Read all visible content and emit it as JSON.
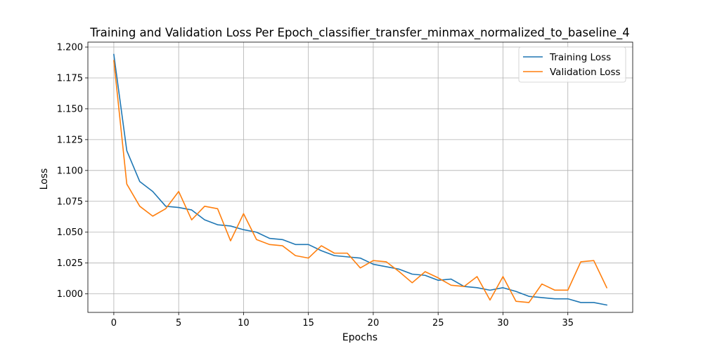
{
  "chart_data": {
    "type": "line",
    "title": "Training and Validation Loss Per Epoch_classifier_transfer_minmax_normalized_to_baseline_4",
    "xlabel": "Epochs",
    "ylabel": "Loss",
    "xlim": [
      -2,
      40
    ],
    "ylim": [
      0.985,
      1.204
    ],
    "xticks": [
      0,
      5,
      10,
      15,
      20,
      25,
      30,
      35
    ],
    "yticks": [
      1.0,
      1.025,
      1.05,
      1.075,
      1.1,
      1.125,
      1.15,
      1.175,
      1.2
    ],
    "ytick_labels": [
      "1.000",
      "1.025",
      "1.050",
      "1.075",
      "1.100",
      "1.125",
      "1.150",
      "1.175",
      "1.200"
    ],
    "grid": true,
    "legend_position": "top-right",
    "x": [
      0,
      1,
      2,
      3,
      4,
      5,
      6,
      7,
      8,
      9,
      10,
      11,
      12,
      13,
      14,
      15,
      16,
      17,
      18,
      19,
      20,
      21,
      22,
      23,
      24,
      25,
      26,
      27,
      28,
      29,
      30,
      31,
      32,
      33,
      34,
      35,
      36,
      37,
      38
    ],
    "series": [
      {
        "name": "Training Loss",
        "color": "#1f77b4",
        "values": [
          1.194,
          1.116,
          1.091,
          1.083,
          1.071,
          1.07,
          1.068,
          1.06,
          1.056,
          1.055,
          1.052,
          1.05,
          1.045,
          1.044,
          1.04,
          1.04,
          1.035,
          1.031,
          1.03,
          1.029,
          1.024,
          1.022,
          1.02,
          1.016,
          1.015,
          1.011,
          1.012,
          1.006,
          1.005,
          1.003,
          1.005,
          1.002,
          0.998,
          0.997,
          0.996,
          0.996,
          0.993,
          0.993,
          0.991
        ]
      },
      {
        "name": "Validation Loss",
        "color": "#ff7f0e",
        "values": [
          1.189,
          1.089,
          1.071,
          1.063,
          1.069,
          1.083,
          1.06,
          1.071,
          1.069,
          1.043,
          1.065,
          1.044,
          1.04,
          1.039,
          1.031,
          1.029,
          1.039,
          1.033,
          1.033,
          1.021,
          1.027,
          1.026,
          1.018,
          1.009,
          1.018,
          1.013,
          1.007,
          1.006,
          1.014,
          0.995,
          1.014,
          0.994,
          0.993,
          1.008,
          1.003,
          1.003,
          1.026,
          1.027,
          1.005
        ]
      }
    ]
  }
}
